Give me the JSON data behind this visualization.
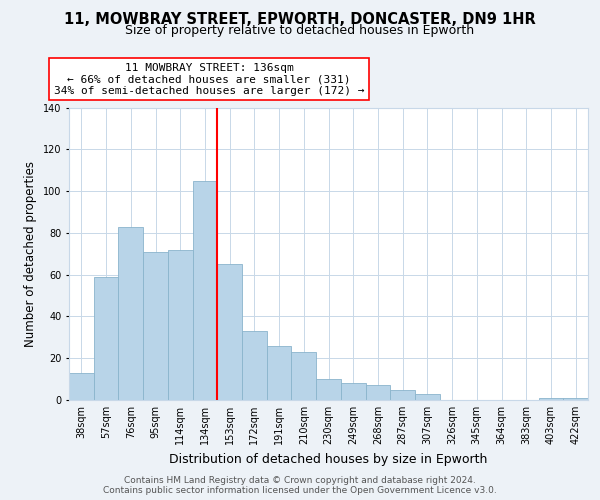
{
  "title": "11, MOWBRAY STREET, EPWORTH, DONCASTER, DN9 1HR",
  "subtitle": "Size of property relative to detached houses in Epworth",
  "xlabel": "Distribution of detached houses by size in Epworth",
  "ylabel": "Number of detached properties",
  "bar_color": "#b8d4e8",
  "bar_edge_color": "#8ab4cc",
  "background_color": "#edf2f7",
  "plot_bg_color": "#ffffff",
  "categories": [
    "38sqm",
    "57sqm",
    "76sqm",
    "95sqm",
    "114sqm",
    "134sqm",
    "153sqm",
    "172sqm",
    "191sqm",
    "210sqm",
    "230sqm",
    "249sqm",
    "268sqm",
    "287sqm",
    "307sqm",
    "326sqm",
    "345sqm",
    "364sqm",
    "383sqm",
    "403sqm",
    "422sqm"
  ],
  "values": [
    13,
    59,
    83,
    71,
    72,
    105,
    65,
    33,
    26,
    23,
    10,
    8,
    7,
    5,
    3,
    0,
    0,
    0,
    0,
    1,
    1
  ],
  "ylim": [
    0,
    140
  ],
  "yticks": [
    0,
    20,
    40,
    60,
    80,
    100,
    120,
    140
  ],
  "property_line_x": 5.5,
  "annotation_title": "11 MOWBRAY STREET: 136sqm",
  "annotation_line1": "← 66% of detached houses are smaller (331)",
  "annotation_line2": "34% of semi-detached houses are larger (172) →",
  "footer_line1": "Contains HM Land Registry data © Crown copyright and database right 2024.",
  "footer_line2": "Contains public sector information licensed under the Open Government Licence v3.0.",
  "grid_color": "#c8d8e8",
  "title_fontsize": 10.5,
  "subtitle_fontsize": 9,
  "annotation_fontsize": 8,
  "ylabel_fontsize": 8.5,
  "xlabel_fontsize": 9,
  "tick_fontsize": 7,
  "footer_fontsize": 6.5
}
